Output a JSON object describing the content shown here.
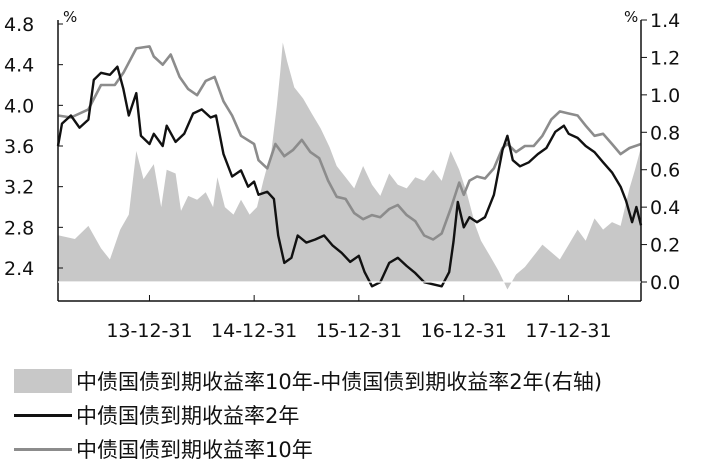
{
  "chart_data": {
    "type": "area+line",
    "x_tick_labels": [
      "13-12-31",
      "14-12-31",
      "15-12-31",
      "16-12-31",
      "17-12-31"
    ],
    "x_ticks": [
      "2013-12-31",
      "2014-12-31",
      "2015-12-31",
      "2016-12-31",
      "2017-12-31"
    ],
    "x_range": [
      "2013-02-15",
      "2018-09-10"
    ],
    "left_axis": {
      "unit": "%",
      "ylim": [
        2.1,
        4.8
      ],
      "ticks": [
        2.4,
        2.8,
        3.2,
        3.6,
        4.0,
        4.4,
        4.8
      ],
      "tick_labels": [
        "2.4",
        "2.8",
        "3.2",
        "3.6",
        "4.0",
        "4.4",
        "4.8"
      ]
    },
    "right_axis": {
      "unit": "%",
      "ylim": [
        -0.05,
        1.4
      ],
      "ticks": [
        0.0,
        0.2,
        0.4,
        0.6,
        0.8,
        1.0,
        1.2,
        1.4
      ],
      "tick_labels": [
        "0.0",
        "0.2",
        "0.4",
        "0.6",
        "0.8",
        "1.0",
        "1.2",
        "1.4"
      ]
    },
    "grid": false,
    "legend_position": "bottom",
    "series": [
      {
        "name": "中债国债到期收益率10年-中债国债到期收益率2年(右轴)",
        "kind": "area",
        "axis": "right",
        "color": "#c8c8c8",
        "points": [
          [
            "2013-02-15",
            0.25
          ],
          [
            "2013-04-15",
            0.23
          ],
          [
            "2013-06-01",
            0.3
          ],
          [
            "2013-07-15",
            0.18
          ],
          [
            "2013-08-15",
            0.12
          ],
          [
            "2013-09-20",
            0.28
          ],
          [
            "2013-10-20",
            0.36
          ],
          [
            "2013-11-15",
            0.7
          ],
          [
            "2013-12-10",
            0.55
          ],
          [
            "2014-01-15",
            0.63
          ],
          [
            "2014-02-10",
            0.4
          ],
          [
            "2014-03-01",
            0.6
          ],
          [
            "2014-04-01",
            0.58
          ],
          [
            "2014-04-20",
            0.38
          ],
          [
            "2014-05-15",
            0.46
          ],
          [
            "2014-06-15",
            0.44
          ],
          [
            "2014-07-15",
            0.48
          ],
          [
            "2014-08-10",
            0.4
          ],
          [
            "2014-08-25",
            0.56
          ],
          [
            "2014-09-20",
            0.4
          ],
          [
            "2014-10-20",
            0.36
          ],
          [
            "2014-11-15",
            0.44
          ],
          [
            "2014-12-15",
            0.36
          ],
          [
            "2015-01-10",
            0.4
          ],
          [
            "2015-02-01",
            0.54
          ],
          [
            "2015-03-01",
            0.7
          ],
          [
            "2015-03-20",
            0.94
          ],
          [
            "2015-04-01",
            1.12
          ],
          [
            "2015-04-10",
            1.28
          ],
          [
            "2015-04-25",
            1.18
          ],
          [
            "2015-05-20",
            1.04
          ],
          [
            "2015-06-20",
            0.98
          ],
          [
            "2015-07-20",
            0.9
          ],
          [
            "2015-08-20",
            0.82
          ],
          [
            "2015-09-20",
            0.72
          ],
          [
            "2015-10-15",
            0.62
          ],
          [
            "2015-11-15",
            0.56
          ],
          [
            "2015-12-15",
            0.5
          ],
          [
            "2016-01-15",
            0.62
          ],
          [
            "2016-02-15",
            0.52
          ],
          [
            "2016-03-15",
            0.46
          ],
          [
            "2016-04-15",
            0.58
          ],
          [
            "2016-05-15",
            0.52
          ],
          [
            "2016-06-15",
            0.5
          ],
          [
            "2016-07-15",
            0.56
          ],
          [
            "2016-08-15",
            0.54
          ],
          [
            "2016-09-15",
            0.6
          ],
          [
            "2016-10-15",
            0.54
          ],
          [
            "2016-11-15",
            0.7
          ],
          [
            "2016-12-15",
            0.6
          ],
          [
            "2017-01-10",
            0.48
          ],
          [
            "2017-02-10",
            0.3
          ],
          [
            "2017-03-01",
            0.22
          ],
          [
            "2017-04-01",
            0.14
          ],
          [
            "2017-05-01",
            0.06
          ],
          [
            "2017-05-20",
            0.0
          ],
          [
            "2017-06-01",
            -0.04
          ],
          [
            "2017-07-01",
            0.04
          ],
          [
            "2017-08-01",
            0.08
          ],
          [
            "2017-09-01",
            0.14
          ],
          [
            "2017-10-01",
            0.2
          ],
          [
            "2017-11-01",
            0.16
          ],
          [
            "2017-12-01",
            0.12
          ],
          [
            "2018-01-01",
            0.2
          ],
          [
            "2018-02-01",
            0.28
          ],
          [
            "2018-03-01",
            0.22
          ],
          [
            "2018-04-01",
            0.34
          ],
          [
            "2018-05-01",
            0.28
          ],
          [
            "2018-06-01",
            0.32
          ],
          [
            "2018-07-01",
            0.3
          ],
          [
            "2018-08-01",
            0.5
          ],
          [
            "2018-08-20",
            0.6
          ],
          [
            "2018-09-10",
            0.72
          ]
        ]
      },
      {
        "name": "中债国债到期收益率2年",
        "kind": "line",
        "axis": "left",
        "color": "#111111",
        "points": [
          [
            "2013-02-15",
            3.6
          ],
          [
            "2013-03-01",
            3.82
          ],
          [
            "2013-04-01",
            3.9
          ],
          [
            "2013-05-01",
            3.78
          ],
          [
            "2013-06-01",
            3.86
          ],
          [
            "2013-06-20",
            4.25
          ],
          [
            "2013-07-15",
            4.32
          ],
          [
            "2013-08-15",
            4.3
          ],
          [
            "2013-09-10",
            4.38
          ],
          [
            "2013-10-01",
            4.16
          ],
          [
            "2013-10-20",
            3.9
          ],
          [
            "2013-11-15",
            4.12
          ],
          [
            "2013-12-01",
            3.7
          ],
          [
            "2013-12-31",
            3.62
          ],
          [
            "2014-01-15",
            3.72
          ],
          [
            "2014-02-15",
            3.6
          ],
          [
            "2014-03-01",
            3.8
          ],
          [
            "2014-04-01",
            3.64
          ],
          [
            "2014-05-01",
            3.72
          ],
          [
            "2014-06-01",
            3.92
          ],
          [
            "2014-07-01",
            3.96
          ],
          [
            "2014-08-01",
            3.88
          ],
          [
            "2014-08-20",
            3.9
          ],
          [
            "2014-09-15",
            3.52
          ],
          [
            "2014-10-15",
            3.3
          ],
          [
            "2014-11-15",
            3.36
          ],
          [
            "2014-12-10",
            3.2
          ],
          [
            "2014-12-31",
            3.25
          ],
          [
            "2015-01-15",
            3.12
          ],
          [
            "2015-02-15",
            3.15
          ],
          [
            "2015-03-10",
            3.08
          ],
          [
            "2015-03-25",
            2.72
          ],
          [
            "2015-04-15",
            2.45
          ],
          [
            "2015-05-10",
            2.5
          ],
          [
            "2015-06-01",
            2.72
          ],
          [
            "2015-07-01",
            2.65
          ],
          [
            "2015-08-01",
            2.68
          ],
          [
            "2015-09-01",
            2.72
          ],
          [
            "2015-10-01",
            2.62
          ],
          [
            "2015-11-01",
            2.55
          ],
          [
            "2015-12-01",
            2.46
          ],
          [
            "2015-12-31",
            2.52
          ],
          [
            "2016-01-20",
            2.36
          ],
          [
            "2016-02-15",
            2.22
          ],
          [
            "2016-03-15",
            2.26
          ],
          [
            "2016-04-15",
            2.45
          ],
          [
            "2016-05-15",
            2.5
          ],
          [
            "2016-06-15",
            2.42
          ],
          [
            "2016-07-15",
            2.35
          ],
          [
            "2016-08-15",
            2.26
          ],
          [
            "2016-09-15",
            2.24
          ],
          [
            "2016-10-15",
            2.22
          ],
          [
            "2016-11-10",
            2.36
          ],
          [
            "2016-11-25",
            2.66
          ],
          [
            "2016-12-10",
            3.05
          ],
          [
            "2016-12-31",
            2.8
          ],
          [
            "2017-01-20",
            2.9
          ],
          [
            "2017-02-15",
            2.85
          ],
          [
            "2017-03-15",
            2.9
          ],
          [
            "2017-04-15",
            3.12
          ],
          [
            "2017-05-15",
            3.56
          ],
          [
            "2017-06-01",
            3.7
          ],
          [
            "2017-06-20",
            3.46
          ],
          [
            "2017-07-15",
            3.4
          ],
          [
            "2017-08-15",
            3.44
          ],
          [
            "2017-09-15",
            3.52
          ],
          [
            "2017-10-15",
            3.58
          ],
          [
            "2017-11-15",
            3.74
          ],
          [
            "2017-12-15",
            3.8
          ],
          [
            "2018-01-01",
            3.72
          ],
          [
            "2018-02-01",
            3.68
          ],
          [
            "2018-03-01",
            3.6
          ],
          [
            "2018-04-01",
            3.54
          ],
          [
            "2018-05-01",
            3.44
          ],
          [
            "2018-06-01",
            3.34
          ],
          [
            "2018-07-01",
            3.2
          ],
          [
            "2018-07-20",
            3.06
          ],
          [
            "2018-08-10",
            2.85
          ],
          [
            "2018-08-25",
            3.0
          ],
          [
            "2018-09-10",
            2.82
          ]
        ]
      },
      {
        "name": "中债国债到期收益率10年",
        "kind": "line",
        "axis": "left",
        "color": "#8c8c8c",
        "points": [
          [
            "2013-02-15",
            3.9
          ],
          [
            "2013-04-01",
            3.88
          ],
          [
            "2013-06-01",
            3.96
          ],
          [
            "2013-07-15",
            4.2
          ],
          [
            "2013-09-01",
            4.2
          ],
          [
            "2013-10-01",
            4.32
          ],
          [
            "2013-11-15",
            4.56
          ],
          [
            "2013-12-31",
            4.58
          ],
          [
            "2014-01-15",
            4.48
          ],
          [
            "2014-02-15",
            4.4
          ],
          [
            "2014-03-15",
            4.5
          ],
          [
            "2014-04-15",
            4.28
          ],
          [
            "2014-05-15",
            4.16
          ],
          [
            "2014-06-15",
            4.1
          ],
          [
            "2014-07-15",
            4.24
          ],
          [
            "2014-08-15",
            4.28
          ],
          [
            "2014-09-15",
            4.04
          ],
          [
            "2014-10-15",
            3.9
          ],
          [
            "2014-11-15",
            3.7
          ],
          [
            "2014-12-31",
            3.62
          ],
          [
            "2015-01-15",
            3.46
          ],
          [
            "2015-02-15",
            3.38
          ],
          [
            "2015-03-15",
            3.62
          ],
          [
            "2015-04-15",
            3.5
          ],
          [
            "2015-05-15",
            3.56
          ],
          [
            "2015-06-15",
            3.66
          ],
          [
            "2015-07-15",
            3.54
          ],
          [
            "2015-08-15",
            3.48
          ],
          [
            "2015-09-15",
            3.26
          ],
          [
            "2015-10-15",
            3.1
          ],
          [
            "2015-11-15",
            3.08
          ],
          [
            "2015-12-15",
            2.94
          ],
          [
            "2016-01-15",
            2.88
          ],
          [
            "2016-02-15",
            2.92
          ],
          [
            "2016-03-15",
            2.9
          ],
          [
            "2016-04-15",
            2.98
          ],
          [
            "2016-05-15",
            3.02
          ],
          [
            "2016-06-15",
            2.92
          ],
          [
            "2016-07-15",
            2.86
          ],
          [
            "2016-08-15",
            2.72
          ],
          [
            "2016-09-15",
            2.68
          ],
          [
            "2016-10-15",
            2.74
          ],
          [
            "2016-11-15",
            2.98
          ],
          [
            "2016-12-15",
            3.24
          ],
          [
            "2016-12-31",
            3.12
          ],
          [
            "2017-01-20",
            3.26
          ],
          [
            "2017-02-15",
            3.3
          ],
          [
            "2017-03-15",
            3.28
          ],
          [
            "2017-04-15",
            3.38
          ],
          [
            "2017-05-15",
            3.58
          ],
          [
            "2017-06-01",
            3.62
          ],
          [
            "2017-07-01",
            3.54
          ],
          [
            "2017-08-01",
            3.6
          ],
          [
            "2017-09-01",
            3.6
          ],
          [
            "2017-10-01",
            3.7
          ],
          [
            "2017-11-01",
            3.86
          ],
          [
            "2017-12-01",
            3.94
          ],
          [
            "2018-01-01",
            3.92
          ],
          [
            "2018-02-01",
            3.9
          ],
          [
            "2018-03-01",
            3.8
          ],
          [
            "2018-04-01",
            3.7
          ],
          [
            "2018-05-01",
            3.72
          ],
          [
            "2018-06-01",
            3.62
          ],
          [
            "2018-07-01",
            3.52
          ],
          [
            "2018-08-01",
            3.58
          ],
          [
            "2018-09-10",
            3.62
          ]
        ]
      }
    ]
  }
}
